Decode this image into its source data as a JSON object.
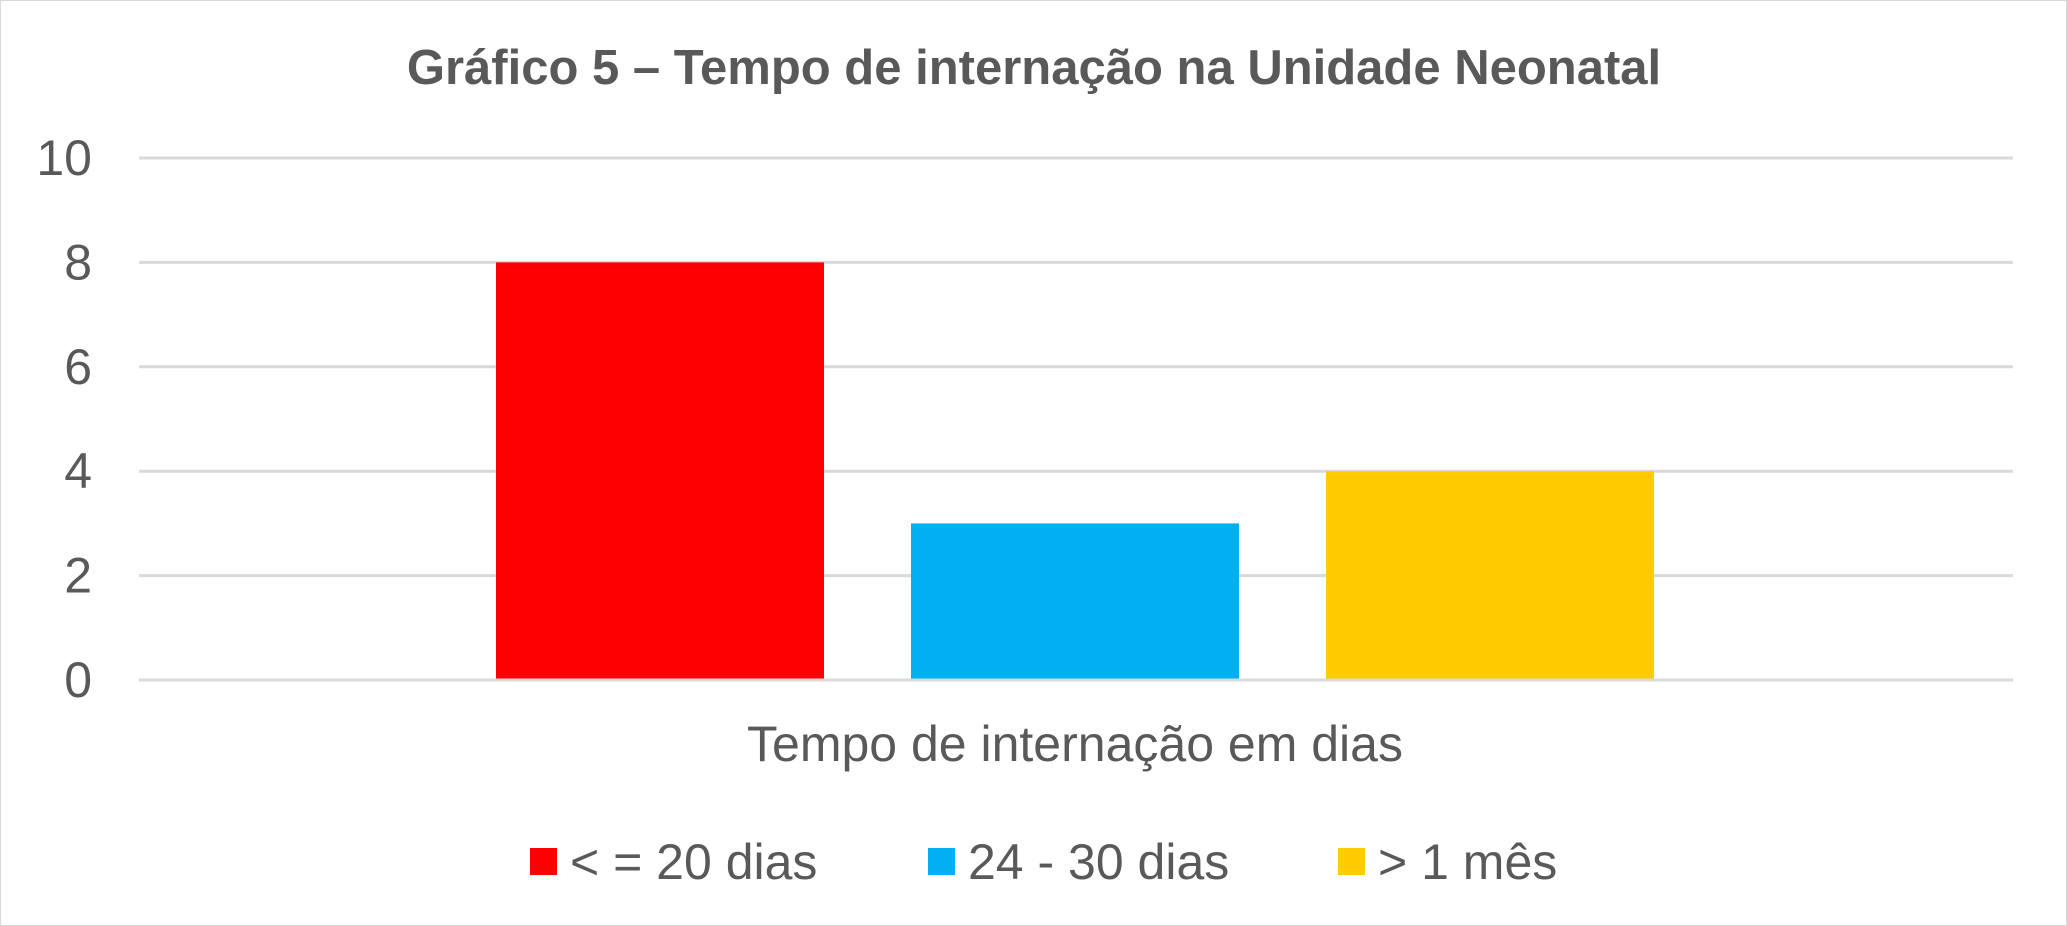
{
  "chart_data": {
    "type": "bar",
    "title": "Gráfico 5 – Tempo de internação na Unidade Neonatal",
    "xlabel": "Tempo de internação em dias",
    "ylabel": "",
    "categories": [
      "Tempo de internação em dias"
    ],
    "series": [
      {
        "name": "< = 20 dias",
        "values": [
          8
        ],
        "color": "#ff0000"
      },
      {
        "name": "24 - 30 dias",
        "values": [
          3
        ],
        "color": "#00b0f0"
      },
      {
        "name": "> 1 mês",
        "values": [
          4
        ],
        "color": "#ffcc00"
      }
    ],
    "ylim": [
      0,
      10
    ],
    "yticks": [
      "0",
      "2",
      "4",
      "6",
      "8",
      "10"
    ],
    "grid": true,
    "legend_position": "bottom",
    "colors": {
      "gridline": "#d9d9d9",
      "text": "#595959",
      "border": "#d9d9d9"
    }
  }
}
